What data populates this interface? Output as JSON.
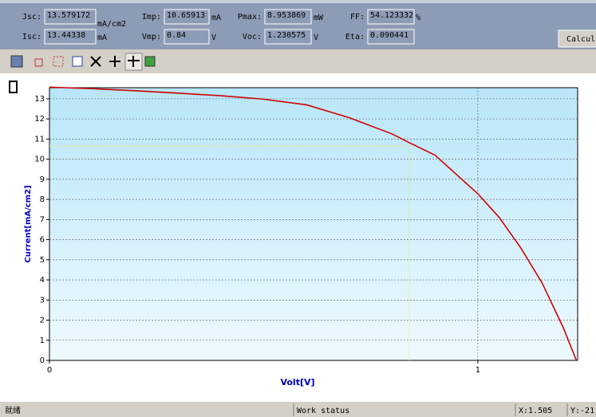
{
  "fields": [
    {
      "label": "Jsc:",
      "value": 13.579172,
      "unit": "mA/cm2"
    },
    {
      "label": "Isc:",
      "value": 13.44338,
      "unit": "mA"
    },
    {
      "label": "Imp:",
      "value": 10.65913,
      "unit": "mA"
    },
    {
      "label": "Vmp:",
      "value": 0.84,
      "unit": "V"
    },
    {
      "label": "Pmax:",
      "value": 8.953869,
      "unit": "mW"
    },
    {
      "label": "Voc:",
      "value": 1.230575,
      "unit": "V"
    },
    {
      "label": "FF:",
      "value": 54.123332,
      "unit": "%"
    },
    {
      "label": "Eta:",
      "value": 0.090441
    }
  ],
  "button": "Calcul",
  "chart_data": {
    "type": "line",
    "x_label": "Volt[V]",
    "y_label": "Current[mA/cm2]",
    "x": [
      0,
      0.1,
      0.2,
      0.3,
      0.4,
      0.5,
      0.6,
      0.7,
      0.8,
      0.84,
      0.9,
      1.0,
      1.05,
      1.1,
      1.15,
      1.2,
      1.23
    ],
    "series": [
      {
        "color": "#d00000",
        "values": [
          13.58,
          13.5,
          13.4,
          13.28,
          13.15,
          12.98,
          12.7,
          12.06,
          11.25,
          10.82,
          10.2,
          8.28,
          7.1,
          5.6,
          3.85,
          1.6,
          0
        ]
      }
    ],
    "xlim": [
      0,
      1.233
    ],
    "ylim": [
      0,
      13.55
    ],
    "xticks": [
      0,
      1
    ],
    "yticks": [
      0,
      1,
      2,
      3,
      4,
      5,
      6,
      7,
      8,
      9,
      10,
      11,
      12,
      13
    ],
    "grid": true
  },
  "status": [
    "就绪",
    "Work status",
    "X:1.505",
    "Y:-21"
  ]
}
